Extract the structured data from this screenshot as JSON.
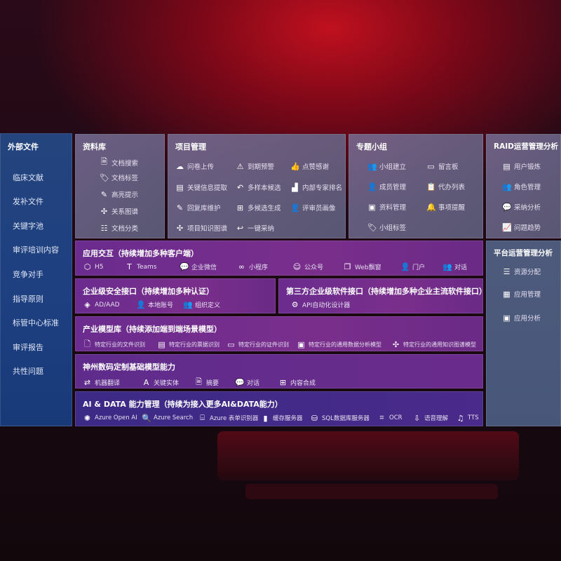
{
  "sidebar": {
    "title": "外部文件",
    "items": [
      "临床文献",
      "发补文件",
      "关键字池",
      "审评培训内容",
      "竞争对手",
      "指导原则",
      "标管中心标准",
      "审评报告",
      "共性问题"
    ]
  },
  "library": {
    "title": "资料库",
    "items": [
      {
        "label": "文档搜索",
        "icon": "doc-search-icon"
      },
      {
        "label": "文档标签",
        "icon": "tag-icon"
      },
      {
        "label": "高亮提示",
        "icon": "pen-icon"
      },
      {
        "label": "关系图谱",
        "icon": "graph-icon"
      },
      {
        "label": "文档分类",
        "icon": "doc-category-icon"
      }
    ]
  },
  "project": {
    "title": "项目管理",
    "items": [
      {
        "label": "问卷上传",
        "icon": "cloud-upload-icon"
      },
      {
        "label": "到期预警",
        "icon": "alarm-icon"
      },
      {
        "label": "点赞感谢",
        "icon": "thumbs-up-icon"
      },
      {
        "label": "关键信息提取",
        "icon": "window-icon"
      },
      {
        "label": "多样本候选",
        "icon": "reply-all-icon"
      },
      {
        "label": "内部专家排名",
        "icon": "ranking-icon"
      },
      {
        "label": "回复库维护",
        "icon": "edit-icon"
      },
      {
        "label": "多候选生成",
        "icon": "puzzle-icon"
      },
      {
        "label": "评审员画像",
        "icon": "user-icon"
      },
      {
        "label": "项目知识图谱",
        "icon": "network-icon"
      },
      {
        "label": "一键采纳",
        "icon": "reply-icon"
      }
    ]
  },
  "group": {
    "title": "专题小组",
    "items": [
      {
        "label": "小组建立",
        "icon": "group-icon"
      },
      {
        "label": "留言板",
        "icon": "bbs-icon"
      },
      {
        "label": "成员管理",
        "icon": "user-add-icon"
      },
      {
        "label": "代办列表",
        "icon": "clipboard-icon"
      },
      {
        "label": "资料管理",
        "icon": "folder-icon"
      },
      {
        "label": "事项提醒",
        "icon": "bell-icon"
      },
      {
        "label": "小组标签",
        "icon": "tag-icon"
      }
    ]
  },
  "raid": {
    "title": "RAID运营管理分析",
    "items": [
      {
        "label": "用户锻炼",
        "icon": "id-card-icon"
      },
      {
        "label": "角色管理",
        "icon": "users-icon"
      },
      {
        "label": "采纳分析",
        "icon": "qa-icon"
      },
      {
        "label": "问题趋势",
        "icon": "trend-icon"
      }
    ]
  },
  "platform": {
    "title": "平台运营管理分析",
    "items": [
      {
        "label": "资源分配",
        "icon": "checklist-icon"
      },
      {
        "label": "应用管理",
        "icon": "apps-icon"
      },
      {
        "label": "应用分析",
        "icon": "analysis-icon"
      }
    ]
  },
  "interaction": {
    "title": "应用交互（持续增加多种客户端）",
    "items": [
      {
        "label": "H5",
        "icon": "html5-icon"
      },
      {
        "label": "Teams",
        "icon": "teams-icon"
      },
      {
        "label": "企业微信",
        "icon": "wecom-icon"
      },
      {
        "label": "小程序",
        "icon": "miniprogram-icon"
      },
      {
        "label": "公众号",
        "icon": "official-account-icon"
      },
      {
        "label": "Web飘窗",
        "icon": "window-icon"
      },
      {
        "label": "门户",
        "icon": "portal-icon"
      },
      {
        "label": "对话",
        "icon": "chat-users-icon"
      }
    ]
  },
  "security": {
    "title": "企业级安全接口（持续增加多种认证）",
    "items": [
      {
        "label": "AD/AAD",
        "icon": "ad-icon"
      },
      {
        "label": "本地账号",
        "icon": "account-icon"
      },
      {
        "label": "组织定义",
        "icon": "org-icon"
      }
    ]
  },
  "thirdparty": {
    "title": "第三方企业级软件接口（持续增加多种企业主流软件接口）",
    "items": [
      {
        "label": "API自动化设计器",
        "icon": "api-gear-icon"
      }
    ]
  },
  "industry": {
    "title": "产业模型库（持续添加端到端场景模型）",
    "items": [
      {
        "label": "特定行业的文件识别",
        "icon": "file-icon"
      },
      {
        "label": "特定行业的票据识别",
        "icon": "receipt-icon"
      },
      {
        "label": "特定行业的证件识别",
        "icon": "id-card-icon"
      },
      {
        "label": "特定行业的通用数据分析模型",
        "icon": "image-icon"
      },
      {
        "label": "特定行业的通用知识图谱模型",
        "icon": "network-icon"
      }
    ]
  },
  "base": {
    "title": "神州数码定制基础模型能力",
    "items": [
      {
        "label": "机器翻译",
        "icon": "translate-icon"
      },
      {
        "label": "关键实体",
        "icon": "entity-icon"
      },
      {
        "label": "摘要",
        "icon": "summary-icon"
      },
      {
        "label": "对话",
        "icon": "chat-icon"
      },
      {
        "label": "内容合成",
        "icon": "puzzle-icon"
      }
    ]
  },
  "aidata": {
    "title": "AI & DATA 能力管理（持续为接入更多AI&DATA能力）",
    "items": [
      {
        "label": "Azure Open AI",
        "icon": "openai-icon"
      },
      {
        "label": "Azure Search",
        "icon": "search-doc-icon"
      },
      {
        "label": "Azure 表单识别器",
        "icon": "form-icon"
      },
      {
        "label": "缓存服务器",
        "icon": "cache-icon"
      },
      {
        "label": "SQL数据库服务器",
        "icon": "database-icon"
      },
      {
        "label": "OCR",
        "icon": "ocr-icon"
      },
      {
        "label": "语音理解",
        "icon": "speech-icon"
      },
      {
        "label": "TTS",
        "icon": "tts-icon"
      }
    ]
  }
}
